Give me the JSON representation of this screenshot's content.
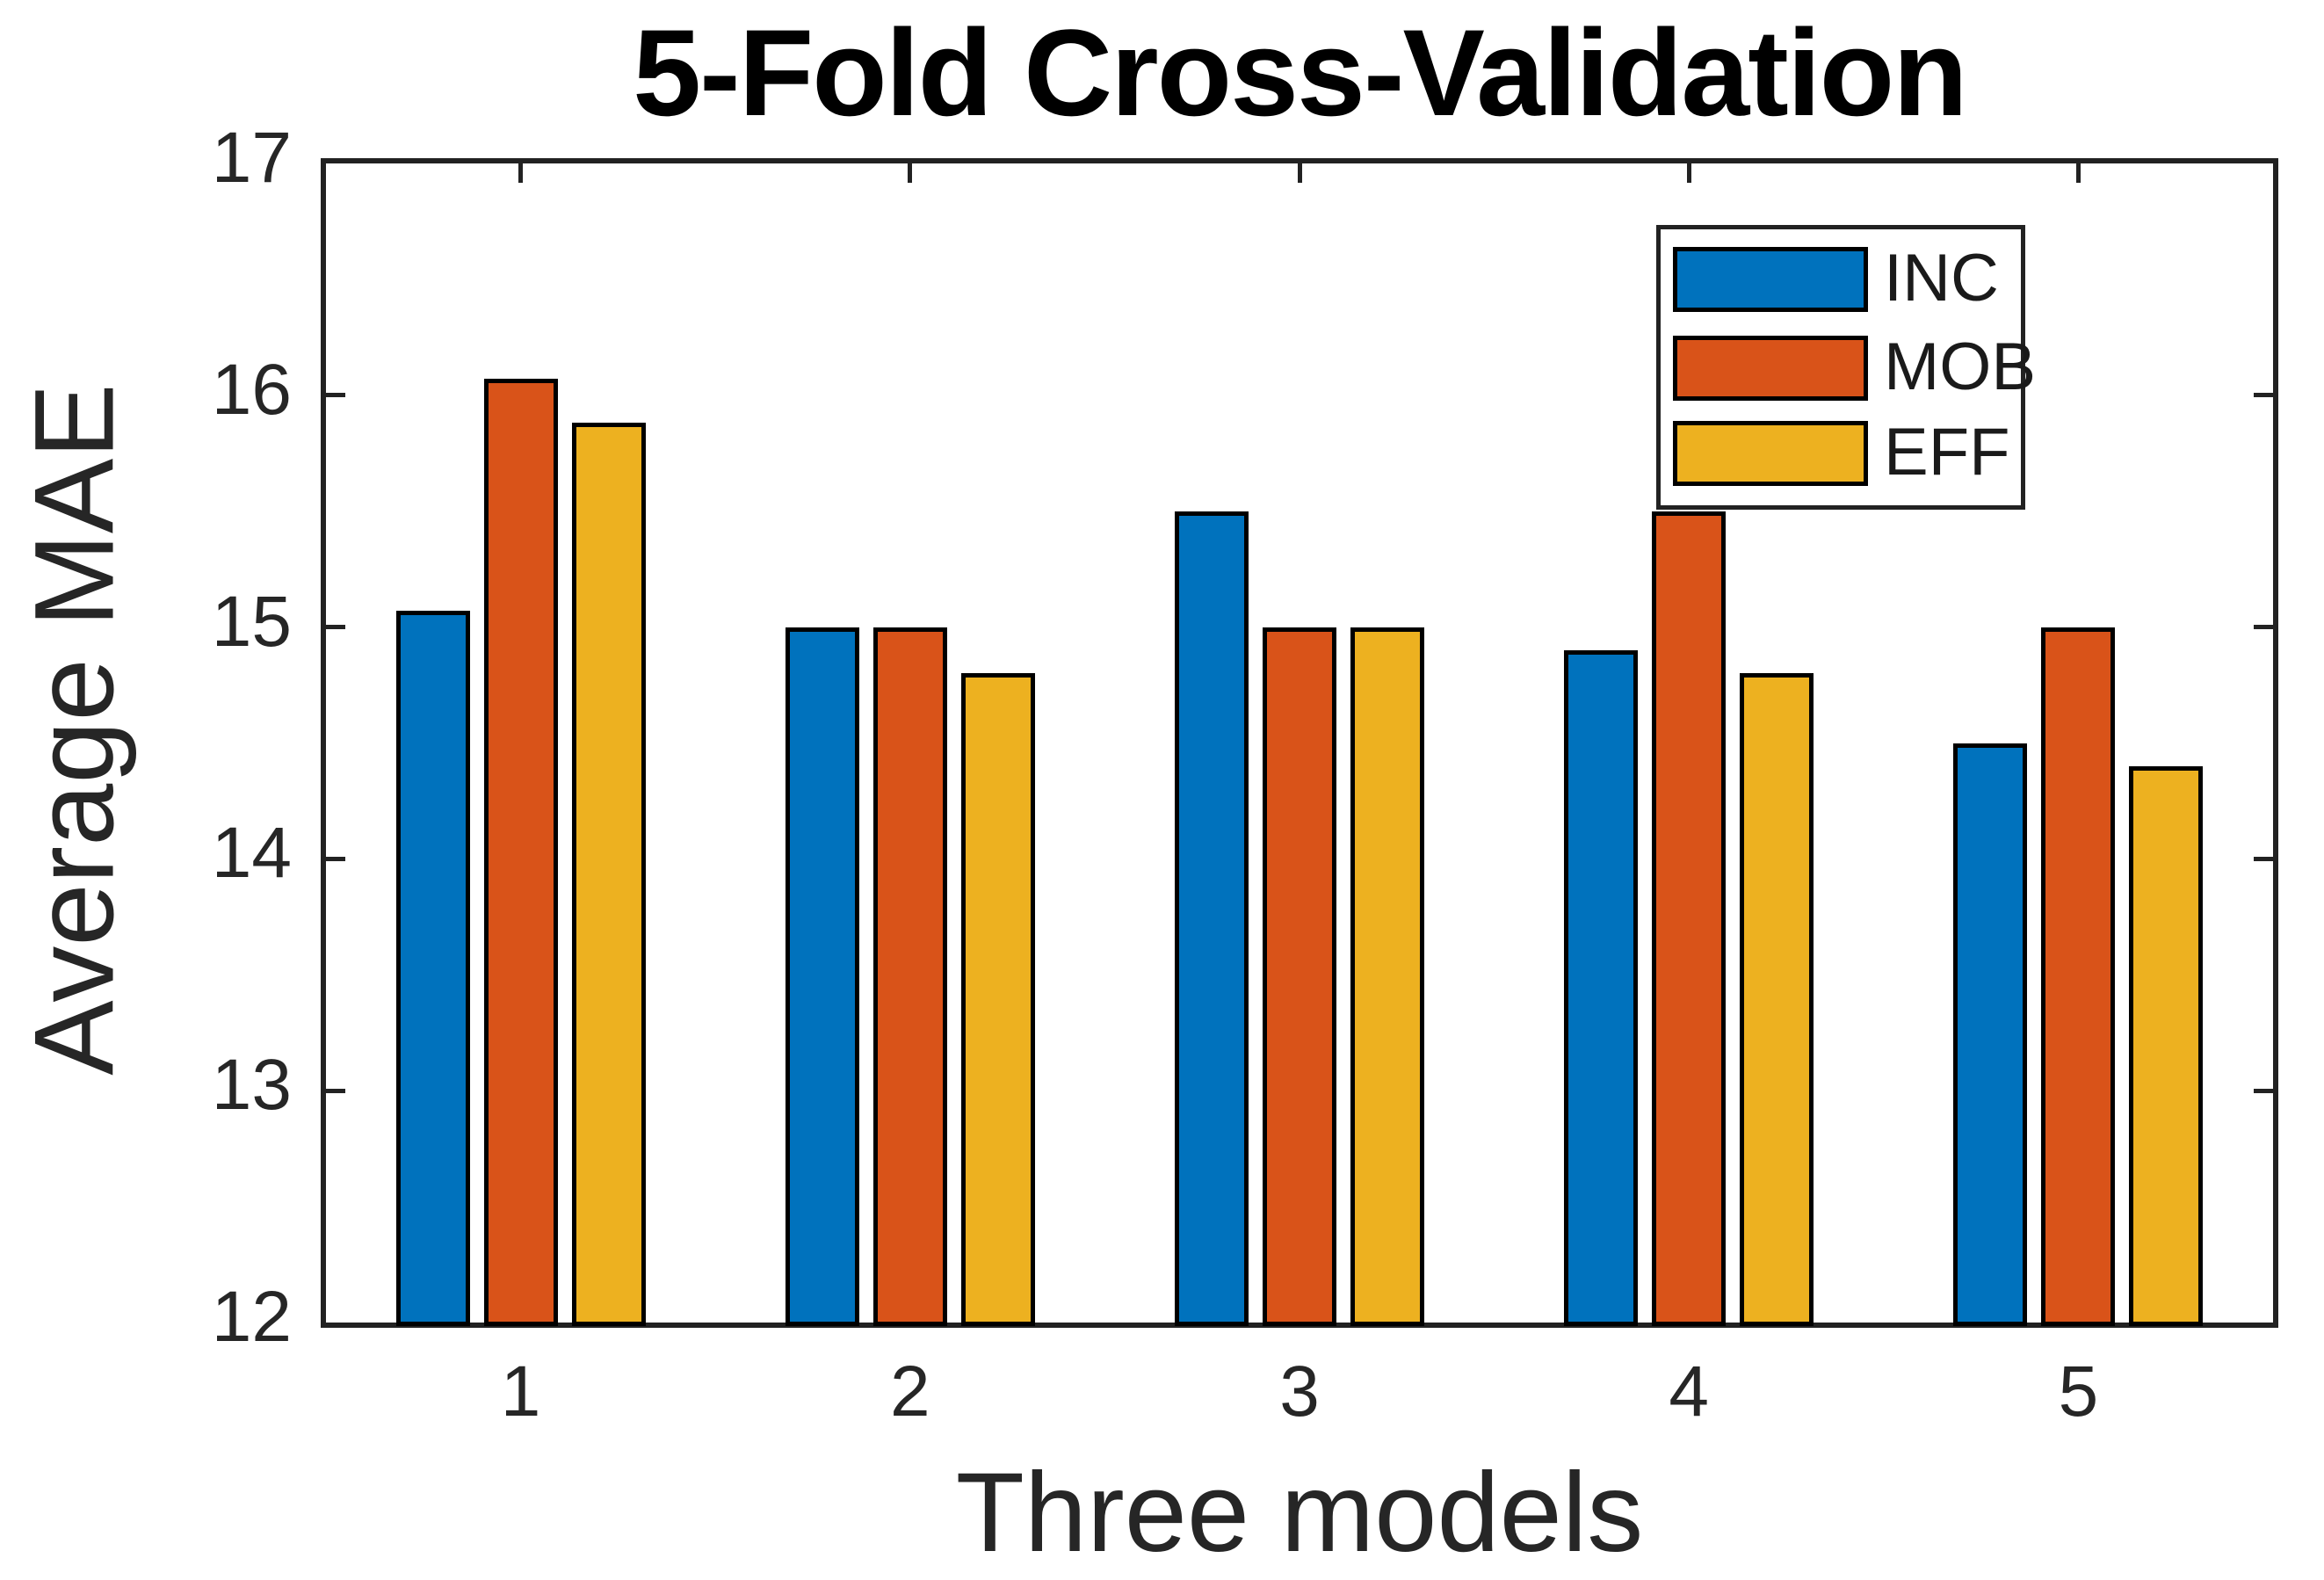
{
  "chart_data": {
    "type": "bar",
    "title": "5-Fold Cross-Validation",
    "xlabel": "Three models",
    "ylabel": "Average MAE",
    "categories": [
      "1",
      "2",
      "3",
      "4",
      "5"
    ],
    "series": [
      {
        "name": "INC",
        "color": "#0072BD",
        "values": [
          15.07,
          15.0,
          15.5,
          14.9,
          14.5
        ]
      },
      {
        "name": "MOB",
        "color": "#D95319",
        "values": [
          16.07,
          15.0,
          15.0,
          15.5,
          15.0
        ]
      },
      {
        "name": "EFF",
        "color": "#EDB120",
        "values": [
          15.88,
          14.8,
          15.0,
          14.8,
          14.4
        ]
      }
    ],
    "ylim": [
      12,
      17
    ],
    "yticks": [
      12,
      13,
      14,
      15,
      16,
      17
    ],
    "xlim": [
      0.5,
      5.5
    ],
    "grid": false,
    "legend_position": "northeast",
    "bar_outline_color": "#000000",
    "axis_color": "#222222",
    "background_color": "#FFFFFF"
  }
}
